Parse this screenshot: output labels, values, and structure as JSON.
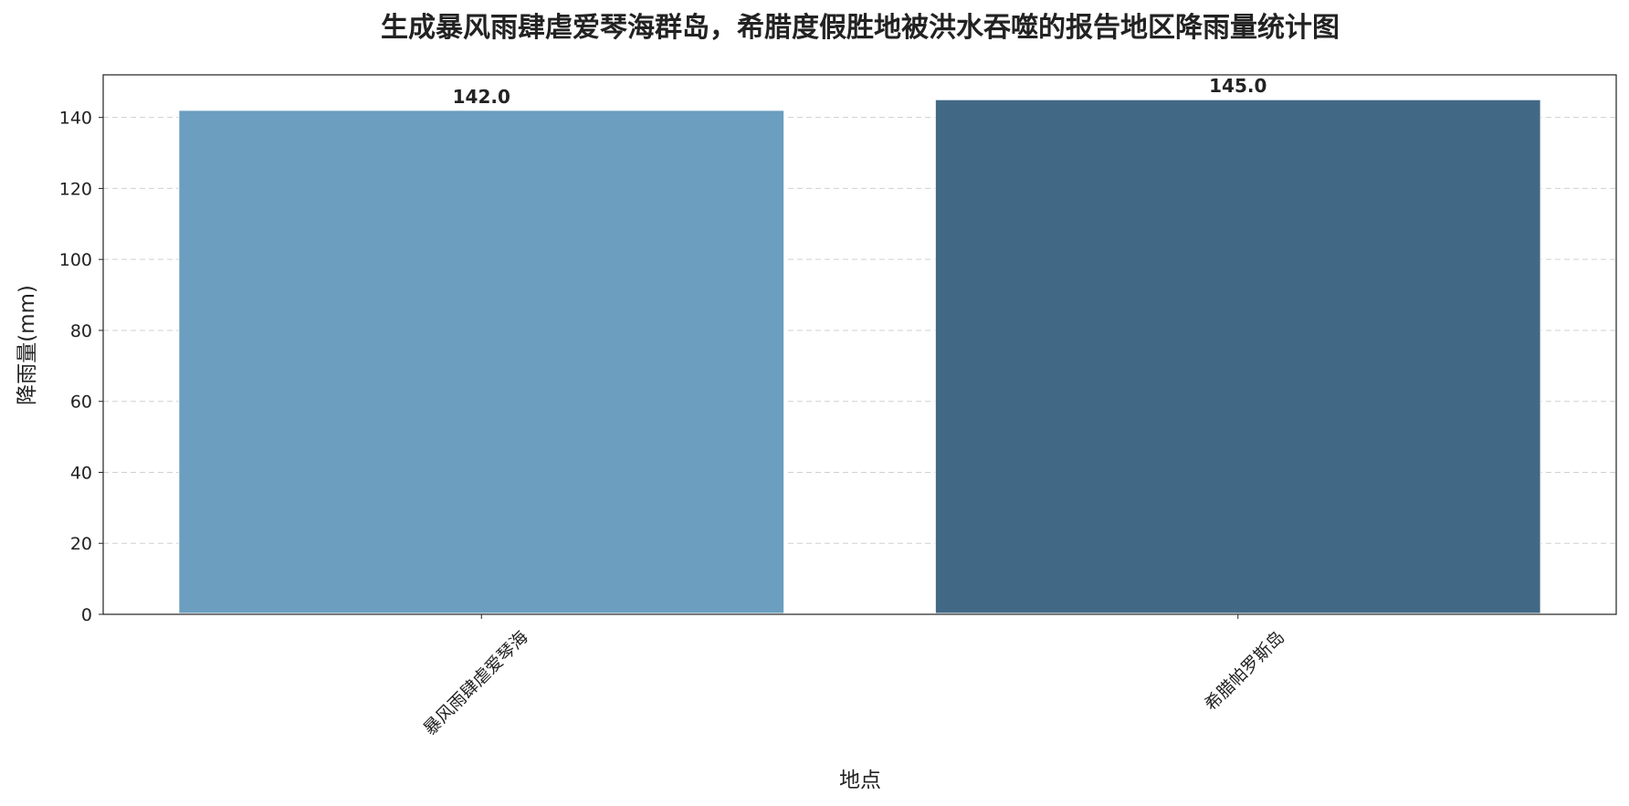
{
  "chart_data": {
    "type": "bar",
    "title": "生成暴风雨肆虐爱琴海群岛，希腊度假胜地被洪水吞噬的报告地区降雨量统计图",
    "xlabel": "地点",
    "ylabel": "降雨量(mm)",
    "categories": [
      "暴风雨肆虐爱琴海",
      "希腊帕罗斯岛"
    ],
    "values": [
      142.0,
      145.0
    ],
    "value_labels": [
      "142.0",
      "145.0"
    ],
    "colors": [
      "#6b9ebf",
      "#416985"
    ],
    "ylim": [
      0,
      152
    ],
    "yticks": [
      0,
      20,
      40,
      60,
      80,
      100,
      120,
      140
    ],
    "grid": "y-dashed",
    "legend": "none"
  }
}
